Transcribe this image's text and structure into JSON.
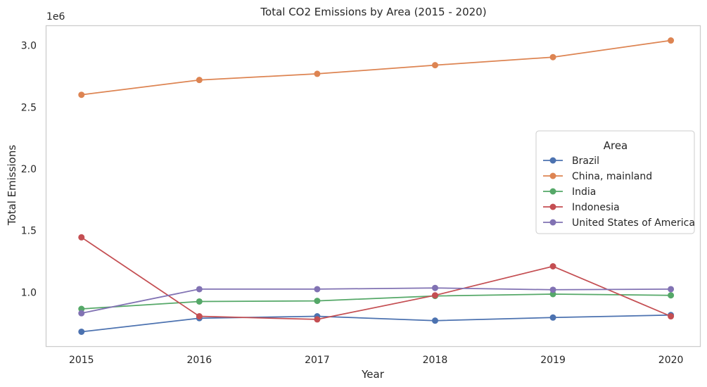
{
  "chart_data": {
    "type": "line",
    "title": "Total CO2 Emissions by Area (2015 - 2020)",
    "xlabel": "Year",
    "ylabel": "Total Emissions",
    "y_offset_label": "1e6",
    "x": [
      2015,
      2016,
      2017,
      2018,
      2019,
      2020
    ],
    "x_tick_labels": [
      "2015",
      "2016",
      "2017",
      "2018",
      "2019",
      "2020"
    ],
    "y_ticks": [
      1.0,
      1.5,
      2.0,
      2.5,
      3.0
    ],
    "y_tick_labels": [
      "1.0",
      "1.5",
      "2.0",
      "2.5",
      "3.0"
    ],
    "ylim": [
      0.56,
      3.16
    ],
    "xlim": [
      2014.7,
      2020.25
    ],
    "y_unit_multiplier": 1000000,
    "grid": false,
    "legend": {
      "title": "Area",
      "placement": "center-right"
    },
    "series": [
      {
        "name": "Brazil",
        "color": "#4c72b0",
        "values": [
          0.68,
          0.79,
          0.805,
          0.77,
          0.795,
          0.815
        ]
      },
      {
        "name": "China, mainland",
        "color": "#dd8452",
        "values": [
          2.6,
          2.72,
          2.77,
          2.84,
          2.905,
          3.04
        ]
      },
      {
        "name": "India",
        "color": "#55a868",
        "values": [
          0.865,
          0.925,
          0.93,
          0.97,
          0.985,
          0.975
        ]
      },
      {
        "name": "Indonesia",
        "color": "#c44e52",
        "values": [
          1.445,
          0.805,
          0.78,
          0.975,
          1.21,
          0.805
        ]
      },
      {
        "name": "United States of America",
        "color": "#8172b3",
        "values": [
          0.83,
          1.025,
          1.025,
          1.035,
          1.02,
          1.025
        ]
      }
    ]
  }
}
